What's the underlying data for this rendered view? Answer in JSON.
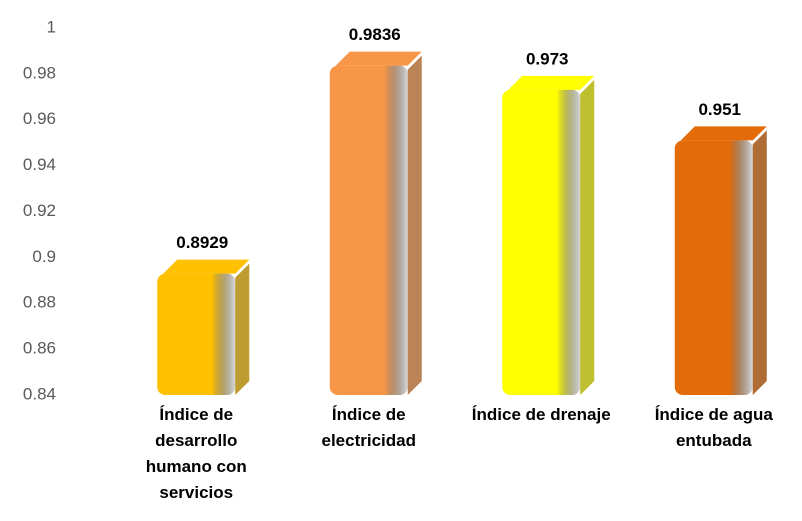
{
  "chart_data": {
    "type": "bar",
    "categories": [
      "Índice de desarrollo humano con servicios",
      "Índice de electricidad",
      "Índice de drenaje",
      "Índice de agua entubada"
    ],
    "values": [
      0.8929,
      0.9836,
      0.973,
      0.951
    ],
    "colors": [
      "#ffc000",
      "#f79646",
      "#ffff00",
      "#e36c09"
    ],
    "ylim": [
      0.84,
      1
    ],
    "yticks": [
      0.84,
      0.86,
      0.88,
      0.9,
      0.92,
      0.94,
      0.96,
      0.98,
      1
    ],
    "grid": false
  }
}
